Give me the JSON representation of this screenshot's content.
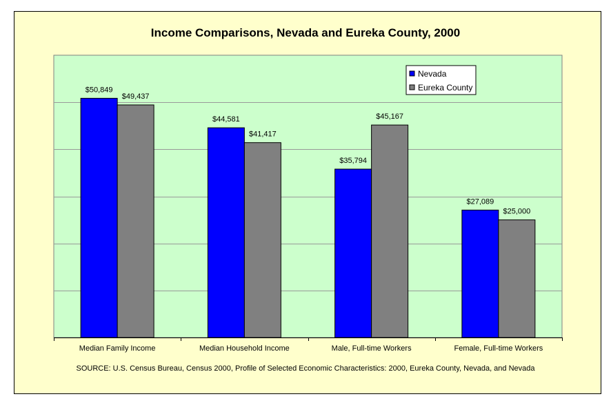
{
  "chart_data": {
    "type": "bar",
    "title": "Income Comparisons, Nevada and Eureka County, 2000",
    "categories": [
      "Median Family Income",
      "Median Household Income",
      "Male, Full-time Workers",
      "Female, Full-time Workers"
    ],
    "series": [
      {
        "name": "Nevada",
        "values": [
          50849,
          44581,
          35794,
          27089
        ],
        "labels": [
          "$50,849",
          "$44,581",
          "$35,794",
          "$27,089"
        ],
        "color": "#0000ff"
      },
      {
        "name": "Eureka County",
        "values": [
          49437,
          41417,
          45167,
          25000
        ],
        "labels": [
          "$49,437",
          "$41,417",
          "$45,167",
          "$25,000"
        ],
        "color": "#808080"
      }
    ],
    "ylim": [
      0,
      60000
    ],
    "y_gridlines": [
      10000,
      20000,
      30000,
      40000,
      50000
    ],
    "grid": true,
    "y_axis_visible": false,
    "legend_position": "top-right",
    "plot_background": "#ccffcc",
    "chart_background": "#ffffcc",
    "source": "SOURCE: U.S. Census Bureau, Census 2000, Profile of Selected Economic Characteristics: 2000, Eureka County, Nevada, and Nevada"
  }
}
